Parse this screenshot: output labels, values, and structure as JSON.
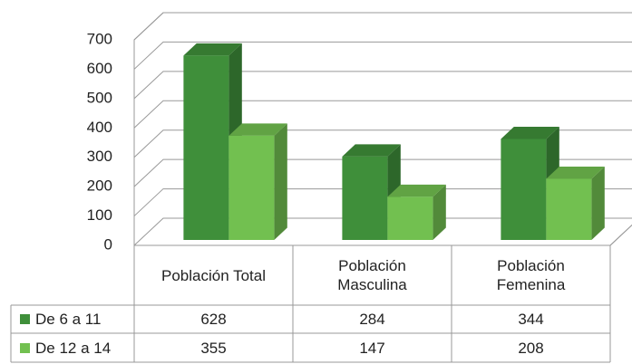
{
  "chart_data": {
    "type": "bar3d",
    "categories": [
      "Población Total",
      "Población Masculina",
      "Población Femenina"
    ],
    "series": [
      {
        "name": "De 6 a 11",
        "color": "#3f8f3a",
        "values": [
          628,
          284,
          344
        ]
      },
      {
        "name": "De 12 a 14",
        "color": "#72c050",
        "values": [
          355,
          147,
          208
        ]
      }
    ],
    "ylim": [
      0,
      700
    ],
    "yticks": [
      0,
      100,
      200,
      300,
      400,
      500,
      600,
      700
    ],
    "grid": true
  }
}
